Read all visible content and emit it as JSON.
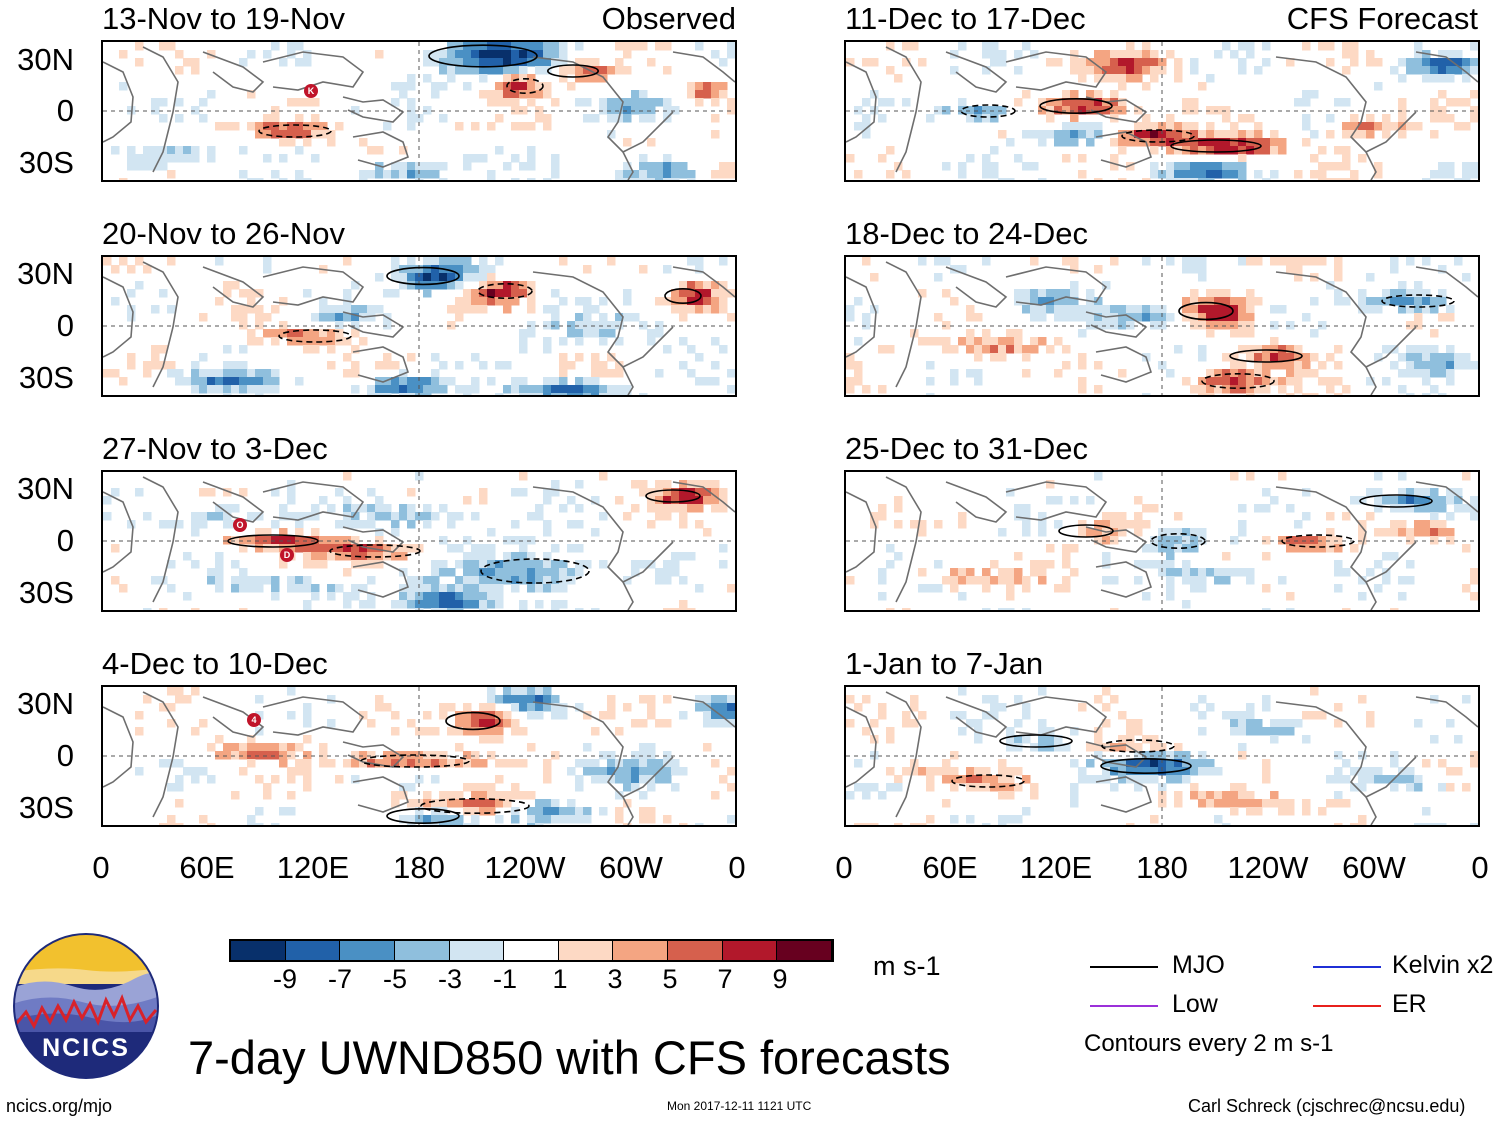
{
  "title": "7-day UWND850 with CFS forecasts",
  "observed_label": "Observed",
  "forecast_label": "CFS Forecast",
  "units": "m s-1",
  "contour_note": "Contours every 2 m s-1",
  "lat_labels": [
    "30N",
    "0",
    "30S"
  ],
  "lon_labels": [
    "0",
    "60E",
    "120E",
    "180",
    "120W",
    "60W",
    "0"
  ],
  "observed_panels": [
    {
      "title": "13-Nov to 19-Nov"
    },
    {
      "title": "20-Nov to 26-Nov"
    },
    {
      "title": "27-Nov to 3-Dec"
    },
    {
      "title": "4-Dec to 10-Dec"
    }
  ],
  "forecast_panels": [
    {
      "title": "11-Dec to 17-Dec"
    },
    {
      "title": "18-Dec to 24-Dec"
    },
    {
      "title": "25-Dec to 31-Dec"
    },
    {
      "title": "1-Jan to 7-Jan"
    }
  ],
  "colorbar": {
    "labels": [
      "-9",
      "-7",
      "-5",
      "-3",
      "-1",
      "1",
      "3",
      "5",
      "7",
      "9"
    ],
    "colors": [
      "#08306b",
      "#2161a9",
      "#4a90c4",
      "#8fbfdd",
      "#d2e5f2",
      "#ffffff",
      "#fdd9c4",
      "#f4a582",
      "#d6604d",
      "#b2182b",
      "#67001f"
    ]
  },
  "legend": [
    {
      "label": "MJO",
      "color": "#000000"
    },
    {
      "label": "Kelvin x2",
      "color": "#1f2fd6"
    },
    {
      "label": "Low",
      "color": "#9b30d9"
    },
    {
      "label": "ER",
      "color": "#e8201c"
    }
  ],
  "logo_text": "NCICS",
  "footer": {
    "left": "ncics.org/mjo",
    "center": "Mon 2017-12-11 1121 UTC",
    "right": "Carl Schreck (cjschrec@ncsu.edu)"
  },
  "storm_markers": [
    {
      "panel": 0,
      "label": "K"
    },
    {
      "panel": 2,
      "label": "O"
    },
    {
      "panel": 2,
      "label": "D"
    },
    {
      "panel": 3,
      "label": "4"
    }
  ]
}
